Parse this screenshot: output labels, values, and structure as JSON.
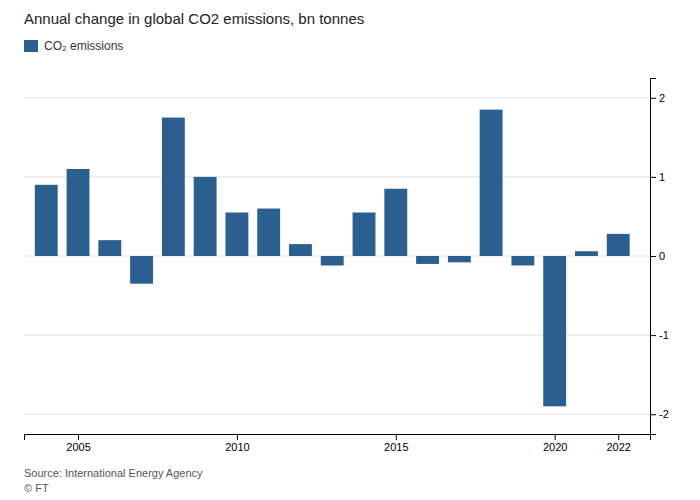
{
  "chart_data": {
    "type": "bar",
    "title": "Annual change in global CO2 emissions, bn tonnes",
    "x": [
      2004,
      2005,
      2006,
      2007,
      2008,
      2009,
      2010,
      2011,
      2012,
      2013,
      2014,
      2015,
      2016,
      2017,
      2018,
      2019,
      2020,
      2021,
      2022
    ],
    "series": [
      {
        "name": "CO₂ emissions",
        "color": "#2a5f8f",
        "values": [
          0.9,
          1.1,
          0.2,
          -0.35,
          1.75,
          1.0,
          0.55,
          0.6,
          0.15,
          -0.12,
          0.55,
          0.85,
          -0.1,
          -0.08,
          1.85,
          -0.12,
          -1.9,
          0.06,
          0.28
        ]
      }
    ],
    "xlim": [
      2003.3,
      2023.0
    ],
    "xticks": [
      2005,
      2010,
      2015,
      2020,
      2022
    ],
    "ylim": [
      -2.25,
      2.25
    ],
    "yticks": [
      -2,
      -1,
      0,
      1,
      2
    ],
    "grid": true,
    "legend": "top-left",
    "annotations": [
      "Source: International Energy Agency",
      "© FT"
    ]
  }
}
